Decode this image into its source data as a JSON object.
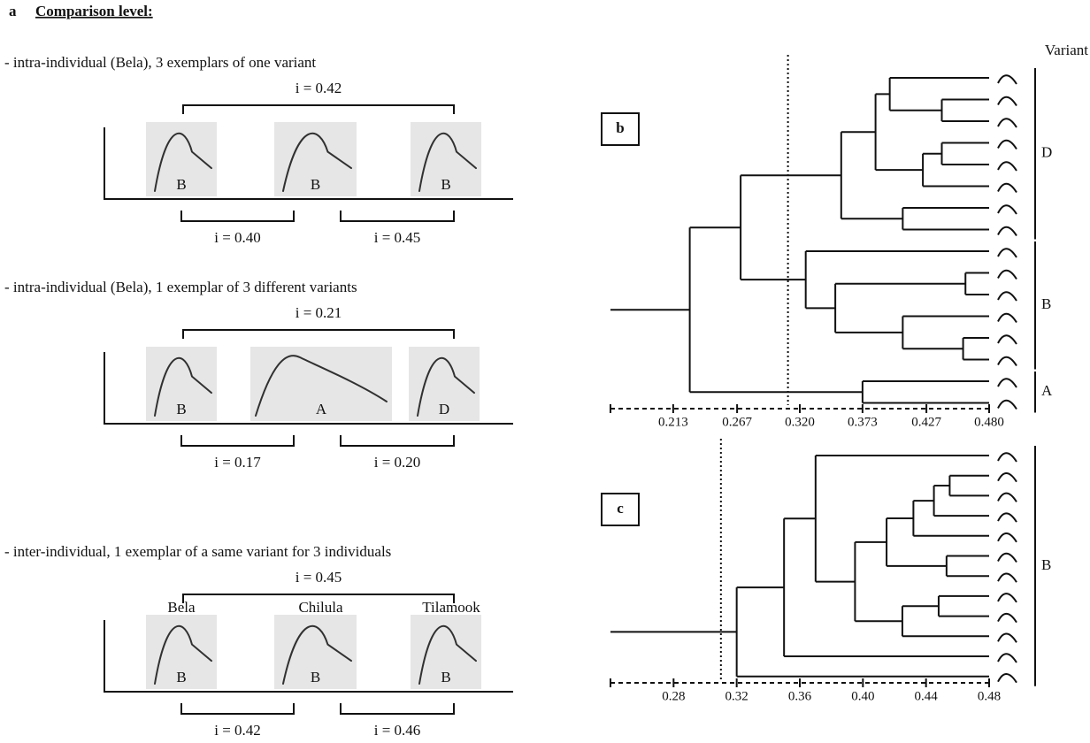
{
  "panel_a": {
    "letter": "a",
    "heading": "Comparison level:",
    "comparisons": [
      {
        "description": "- intra-individual (Bela), 3 exemplars of one variant",
        "overall": "i = 0.42",
        "pairs": [
          "i = 0.40",
          "i = 0.45"
        ],
        "variants": [
          "B",
          "B",
          "B"
        ]
      },
      {
        "description": "- intra-individual (Bela), 1 exemplar of 3 different variants",
        "overall": "i = 0.21",
        "pairs": [
          "i = 0.17",
          "i = 0.20"
        ],
        "variants": [
          "B",
          "A",
          "D"
        ]
      },
      {
        "description": "- inter-individual, 1 exemplar of a same variant for 3 individuals",
        "overall": "i = 0.45",
        "pairs": [
          "i = 0.42",
          "i = 0.46"
        ],
        "variants": [
          "B",
          "B",
          "B"
        ],
        "individuals": [
          "Bela",
          "Chilula",
          "Tilamook"
        ]
      }
    ]
  },
  "panel_b": {
    "letter": "b",
    "column_title": "Variant",
    "xlim": [
      0.16,
      0.48
    ],
    "xticks": [
      0.213,
      0.267,
      {
        "value": 0.32,
        "label": "0.320"
      },
      0.373,
      0.427,
      {
        "value": 0.48,
        "label": "0.480"
      }
    ],
    "cutoff": 0.31,
    "groups": [
      {
        "label": "D",
        "size": 8
      },
      {
        "label": "B",
        "size": 6
      },
      {
        "label": "A",
        "size": 2
      }
    ],
    "merges": [
      [
        1,
        2,
        0.44
      ],
      [
        0,
        16,
        0.396
      ],
      [
        3,
        4,
        0.44
      ],
      [
        18,
        5,
        0.424
      ],
      [
        17,
        19,
        0.384
      ],
      [
        6,
        7,
        0.407
      ],
      [
        20,
        21,
        0.355
      ],
      [
        9,
        10,
        0.46
      ],
      [
        12,
        13,
        0.458
      ],
      [
        11,
        24,
        0.407
      ],
      [
        23,
        25,
        0.35
      ],
      [
        8,
        26,
        0.325
      ],
      [
        22,
        27,
        0.27
      ],
      [
        14,
        15,
        0.373
      ],
      [
        28,
        29,
        0.227
      ]
    ]
  },
  "panel_c": {
    "letter": "c",
    "xlim": [
      0.24,
      0.48
    ],
    "xticks": [
      0.28,
      0.32,
      0.36,
      {
        "value": 0.4,
        "label": "0.40"
      },
      0.44,
      0.48
    ],
    "cutoff": 0.31,
    "groups": [
      {
        "label": "B",
        "size": 12
      }
    ],
    "merges": [
      [
        1,
        2,
        0.455
      ],
      [
        12,
        3,
        0.445
      ],
      [
        13,
        4,
        0.432
      ],
      [
        5,
        6,
        0.453
      ],
      [
        14,
        15,
        0.415
      ],
      [
        7,
        8,
        0.448
      ],
      [
        17,
        9,
        0.425
      ],
      [
        16,
        18,
        0.395
      ],
      [
        0,
        19,
        0.37
      ],
      [
        20,
        10,
        0.35
      ],
      [
        21,
        11,
        0.32
      ]
    ]
  }
}
